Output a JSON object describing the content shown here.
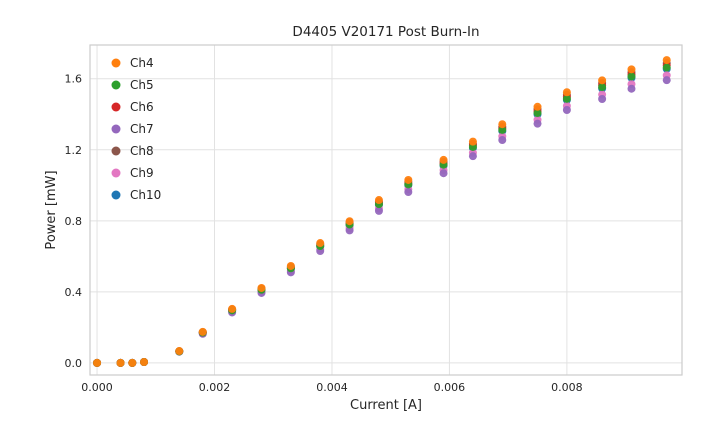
{
  "figure": {
    "background": "#ffffff",
    "plot_background": "#ffffff",
    "grid_color": "#e2e2e2",
    "spine_color": "#cccccc",
    "text_color": "#262626",
    "marker_radius": 4
  },
  "chart_data": {
    "type": "scatter",
    "title": "D4405 V20171 Post Burn-In",
    "xlabel": "Current [A]",
    "ylabel": "Power [mW]",
    "grid": true,
    "legend_position": "upper-left",
    "xlim": [
      -0.00012,
      0.00996
    ],
    "ylim": [
      -0.068,
      1.79
    ],
    "x_ticks": [
      0.0,
      0.002,
      0.004,
      0.006,
      0.008
    ],
    "x_tick_labels": [
      "0.000",
      "0.002",
      "0.004",
      "0.006",
      "0.008"
    ],
    "y_ticks": [
      0.0,
      0.4,
      0.8,
      1.2,
      1.6
    ],
    "y_tick_labels": [
      "0.0",
      "0.4",
      "0.8",
      "1.2",
      "1.6"
    ],
    "x": [
      0.0,
      0.0004,
      0.0006,
      0.0008,
      0.0014,
      0.0018,
      0.0023,
      0.0028,
      0.0033,
      0.0038,
      0.0043,
      0.0048,
      0.0053,
      0.0059,
      0.0064,
      0.0069,
      0.0075,
      0.008,
      0.0086,
      0.0091,
      0.0097
    ],
    "series": [
      {
        "name": "Ch4",
        "color": "#ff7f0e",
        "values": [
          0,
          0,
          0,
          0.005,
          0.067,
          0.175,
          0.304,
          0.422,
          0.546,
          0.675,
          0.798,
          0.917,
          1.03,
          1.143,
          1.246,
          1.344,
          1.442,
          1.524,
          1.591,
          1.653,
          1.705
        ]
      },
      {
        "name": "Ch5",
        "color": "#2ca02c",
        "values": [
          0,
          0,
          0,
          0.005,
          0.065,
          0.171,
          0.296,
          0.412,
          0.533,
          0.658,
          0.779,
          0.894,
          1.005,
          1.116,
          1.216,
          1.312,
          1.407,
          1.487,
          1.553,
          1.613,
          1.663
        ]
      },
      {
        "name": "Ch6",
        "color": "#d62728",
        "values": [
          0,
          0,
          0,
          0.005,
          0.066,
          0.172,
          0.299,
          0.415,
          0.536,
          0.663,
          0.784,
          0.901,
          1.012,
          1.123,
          1.225,
          1.321,
          1.417,
          1.498,
          1.564,
          1.624,
          1.675
        ]
      },
      {
        "name": "Ch7",
        "color": "#9467bd",
        "values": [
          0,
          0,
          0,
          0.005,
          0.063,
          0.164,
          0.284,
          0.394,
          0.51,
          0.63,
          0.746,
          0.856,
          0.962,
          1.068,
          1.164,
          1.255,
          1.347,
          1.424,
          1.486,
          1.544,
          1.592
        ]
      },
      {
        "name": "Ch8",
        "color": "#8c564b",
        "values": [
          0,
          0,
          0,
          0.005,
          0.066,
          0.173,
          0.301,
          0.418,
          0.541,
          0.668,
          0.791,
          0.908,
          1.02,
          1.132,
          1.234,
          1.331,
          1.428,
          1.51,
          1.576,
          1.637,
          1.688
        ]
      },
      {
        "name": "Ch9",
        "color": "#e377c2",
        "values": [
          0,
          0,
          0,
          0.005,
          0.064,
          0.166,
          0.289,
          0.401,
          0.518,
          0.641,
          0.758,
          0.87,
          0.978,
          1.086,
          1.183,
          1.276,
          1.369,
          1.447,
          1.511,
          1.57,
          1.619
        ]
      },
      {
        "name": "Ch10",
        "color": "#1f77b4",
        "values": [
          0,
          0,
          0,
          0.005,
          0.065,
          0.17,
          0.295,
          0.41,
          0.53,
          0.655,
          0.775,
          0.89,
          1.0,
          1.11,
          1.21,
          1.305,
          1.4,
          1.48,
          1.545,
          1.605,
          1.655
        ]
      }
    ]
  }
}
